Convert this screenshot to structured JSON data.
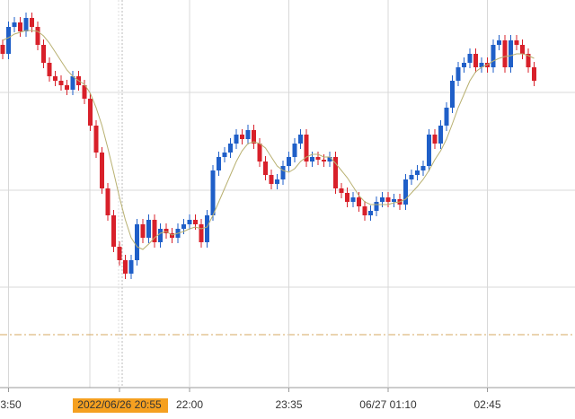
{
  "chart_data": {
    "type": "candlestick",
    "ylim": [
      0,
      430
    ],
    "grid_y": [
      110,
      218,
      327
    ],
    "reference_line": 57,
    "up_color": "#1f5fc8",
    "down_color": "#d8202a",
    "highlight_index": 20,
    "categories": [
      null,
      "3:50",
      null,
      null,
      null,
      null,
      null,
      null,
      null,
      null,
      null,
      null,
      null,
      null,
      null,
      null,
      null,
      null,
      null,
      null,
      "2022/06/26 20:55",
      null,
      null,
      null,
      null,
      null,
      null,
      null,
      null,
      null,
      null,
      null,
      "22:00",
      null,
      null,
      null,
      null,
      null,
      null,
      null,
      null,
      null,
      null,
      null,
      null,
      null,
      null,
      null,
      null,
      "23:35",
      null,
      null,
      null,
      null,
      null,
      null,
      null,
      null,
      null,
      null,
      null,
      null,
      null,
      null,
      null,
      null,
      "06/27 01:10",
      null,
      null,
      null,
      null,
      null,
      null,
      null,
      null,
      null,
      null,
      null,
      null,
      null,
      null,
      null,
      null,
      "02:45",
      null,
      null,
      null,
      null,
      null,
      null,
      null,
      null
    ],
    "open": [
      380,
      370,
      400,
      405,
      395,
      410,
      400,
      380,
      360,
      345,
      340,
      335,
      330,
      345,
      335,
      320,
      290,
      260,
      220,
      190,
      155,
      140,
      125,
      140,
      180,
      165,
      185,
      160,
      175,
      170,
      165,
      175,
      180,
      185,
      180,
      160,
      190,
      240,
      255,
      260,
      270,
      280,
      275,
      285,
      270,
      250,
      235,
      225,
      230,
      245,
      255,
      270,
      280,
      250,
      255,
      252,
      250,
      255,
      220,
      215,
      205,
      210,
      200,
      190,
      195,
      205,
      210,
      205,
      208,
      202,
      230,
      235,
      240,
      245,
      280,
      270,
      290,
      310,
      340,
      355,
      360,
      370,
      355,
      360,
      355,
      380,
      385,
      355,
      385,
      380,
      370,
      355
    ],
    "high": [
      386,
      406,
      411,
      411,
      416,
      416,
      406,
      386,
      366,
      351,
      346,
      341,
      351,
      351,
      341,
      326,
      296,
      266,
      226,
      196,
      161,
      146,
      146,
      186,
      186,
      191,
      191,
      181,
      181,
      176,
      181,
      186,
      191,
      191,
      186,
      196,
      246,
      261,
      266,
      276,
      286,
      286,
      291,
      291,
      276,
      256,
      241,
      236,
      251,
      261,
      276,
      286,
      286,
      261,
      261,
      258,
      261,
      261,
      226,
      221,
      216,
      216,
      206,
      201,
      211,
      216,
      216,
      214,
      214,
      236,
      241,
      246,
      251,
      286,
      286,
      296,
      316,
      346,
      361,
      366,
      376,
      376,
      366,
      366,
      386,
      391,
      391,
      391,
      391,
      386,
      376,
      361
    ],
    "low": [
      364,
      364,
      394,
      389,
      389,
      394,
      374,
      354,
      339,
      334,
      329,
      324,
      324,
      329,
      314,
      284,
      254,
      214,
      184,
      149,
      134,
      119,
      119,
      134,
      159,
      159,
      154,
      154,
      164,
      159,
      159,
      169,
      174,
      174,
      154,
      154,
      184,
      234,
      249,
      254,
      264,
      269,
      269,
      264,
      244,
      229,
      219,
      219,
      224,
      239,
      249,
      264,
      244,
      244,
      246,
      244,
      244,
      214,
      209,
      199,
      199,
      194,
      184,
      184,
      189,
      199,
      199,
      199,
      196,
      196,
      224,
      229,
      234,
      239,
      264,
      264,
      284,
      304,
      334,
      349,
      354,
      349,
      349,
      349,
      349,
      374,
      349,
      349,
      374,
      364,
      349,
      334
    ],
    "close": [
      370,
      400,
      405,
      395,
      410,
      400,
      380,
      360,
      345,
      340,
      335,
      330,
      345,
      335,
      320,
      290,
      260,
      220,
      190,
      155,
      140,
      125,
      140,
      180,
      165,
      185,
      160,
      175,
      170,
      165,
      175,
      180,
      185,
      180,
      160,
      190,
      240,
      255,
      260,
      270,
      280,
      275,
      285,
      270,
      250,
      235,
      225,
      230,
      245,
      255,
      270,
      280,
      250,
      255,
      252,
      250,
      255,
      220,
      215,
      205,
      210,
      200,
      190,
      195,
      205,
      210,
      205,
      208,
      202,
      230,
      235,
      240,
      245,
      280,
      270,
      290,
      310,
      340,
      355,
      360,
      370,
      355,
      360,
      355,
      380,
      385,
      355,
      385,
      380,
      370,
      355,
      340
    ],
    "ma": {
      "color": "#b8b070",
      "values": [
        385,
        388,
        392,
        394,
        396,
        396,
        395,
        390,
        382,
        372,
        362,
        352,
        345,
        340,
        336,
        326,
        310,
        290,
        265,
        238,
        210,
        185,
        165,
        155,
        152,
        158,
        165,
        170,
        172,
        168,
        170,
        172,
        175,
        177,
        175,
        177,
        190,
        205,
        220,
        235,
        250,
        262,
        270,
        272,
        270,
        265,
        255,
        245,
        240,
        238,
        242,
        250,
        255,
        258,
        258,
        255,
        255,
        248,
        240,
        232,
        222,
        212,
        205,
        202,
        202,
        202,
        202,
        204,
        205,
        208,
        215,
        222,
        230,
        240,
        252,
        262,
        275,
        292,
        310,
        325,
        340,
        350,
        355,
        358,
        362,
        365,
        367,
        368,
        370,
        370,
        368,
        365
      ]
    }
  }
}
